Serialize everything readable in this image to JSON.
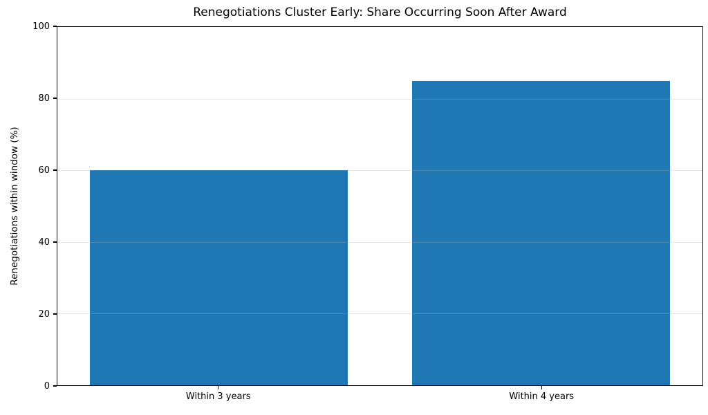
{
  "chart_data": {
    "type": "bar",
    "title": "Renegotiations Cluster Early: Share Occurring Soon After Award",
    "categories": [
      "Within 3 years",
      "Within 4 years"
    ],
    "values": [
      60,
      85
    ],
    "xlabel": "",
    "ylabel": "Renegotiations within window (%)",
    "ylim": [
      0,
      100
    ],
    "yticks": [
      0,
      20,
      40,
      60,
      80,
      100
    ],
    "grid": "horizontal",
    "legend_position": "none",
    "bar_color": "#1f77b4",
    "grid_color": "#b0b0b0",
    "grid_alpha": 0.3,
    "spine_color": "#000000",
    "background_color": "#ffffff",
    "bar_width_fraction": 0.8
  }
}
